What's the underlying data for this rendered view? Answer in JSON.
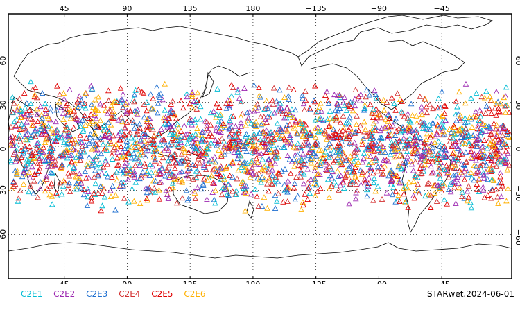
{
  "map": {
    "projection": "equirectangular",
    "lon_range": [
      5,
      365
    ],
    "lat_range": [
      -90,
      90
    ],
    "lon_ticks": [
      {
        "lon": 45,
        "label": "45"
      },
      {
        "lon": 90,
        "label": "90"
      },
      {
        "lon": 135,
        "label": "135"
      },
      {
        "lon": 180,
        "label": "180"
      },
      {
        "lon": 225,
        "label": "−135"
      },
      {
        "lon": 270,
        "label": "−90"
      },
      {
        "lon": 315,
        "label": "−45"
      }
    ],
    "lat_ticks": [
      {
        "lat": 60,
        "label": "60"
      },
      {
        "lat": 30,
        "label": "30"
      },
      {
        "lat": 0,
        "label": "0"
      },
      {
        "lat": -30,
        "label": "−30"
      },
      {
        "lat": -60,
        "label": "−60"
      }
    ],
    "observation_lat_range": [
      -45,
      45
    ],
    "marker": "open-triangle"
  },
  "legend": {
    "items": [
      {
        "label": "C2E1",
        "color": "#00bcd4"
      },
      {
        "label": "C2E2",
        "color": "#9c27b0"
      },
      {
        "label": "C2E3",
        "color": "#1e6fd0"
      },
      {
        "label": "C2E4",
        "color": "#d32f2f"
      },
      {
        "label": "C2E5",
        "color": "#e00000"
      },
      {
        "label": "C2E6",
        "color": "#ffb000"
      }
    ]
  },
  "caption": "STARwet.2024-06-01"
}
